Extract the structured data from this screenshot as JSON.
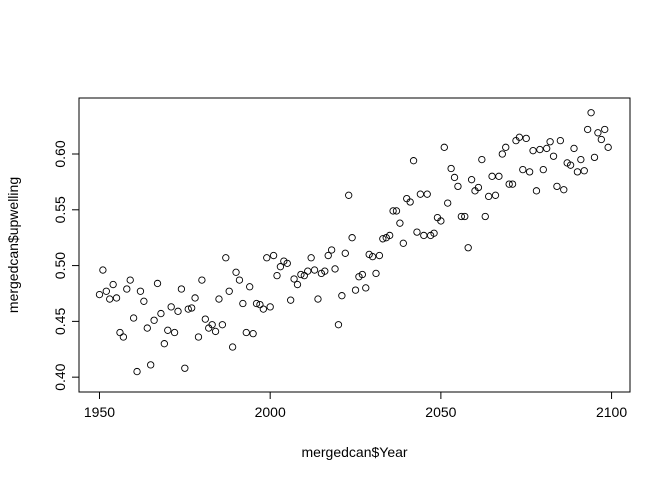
{
  "chart_data": {
    "type": "scatter",
    "xlabel": "mergedcan$Year",
    "ylabel": "mergedcan$upwelling",
    "xlim": [
      1944,
      2105.4
    ],
    "ylim": [
      0.3867,
      0.6502
    ],
    "x_ticks": [
      1950,
      2000,
      2050,
      2100
    ],
    "y_ticks": [
      0.4,
      0.45,
      0.5,
      0.55,
      0.6
    ],
    "x_tick_labels": [
      "1950",
      "2000",
      "2050",
      "2100"
    ],
    "y_tick_labels": [
      "0.40",
      "0.45",
      "0.50",
      "0.55",
      "0.60"
    ],
    "grid": false,
    "legend": "none",
    "marker": "open-circle",
    "color": "#000000",
    "x": [
      1950,
      1951,
      1952,
      1953,
      1954,
      1955,
      1956,
      1957,
      1958,
      1959,
      1960,
      1961,
      1962,
      1963,
      1964,
      1965,
      1966,
      1967,
      1968,
      1969,
      1970,
      1971,
      1972,
      1973,
      1974,
      1975,
      1976,
      1977,
      1978,
      1979,
      1980,
      1981,
      1982,
      1983,
      1984,
      1985,
      1986,
      1987,
      1988,
      1989,
      1990,
      1991,
      1992,
      1993,
      1994,
      1995,
      1996,
      1997,
      1998,
      1999,
      2000,
      2001,
      2002,
      2003,
      2004,
      2005,
      2006,
      2007,
      2008,
      2009,
      2010,
      2011,
      2012,
      2013,
      2014,
      2015,
      2016,
      2017,
      2018,
      2019,
      2020,
      2021,
      2022,
      2023,
      2024,
      2025,
      2026,
      2027,
      2028,
      2029,
      2030,
      2031,
      2032,
      2033,
      2034,
      2035,
      2036,
      2037,
      2038,
      2039,
      2040,
      2041,
      2042,
      2043,
      2044,
      2045,
      2046,
      2047,
      2048,
      2049,
      2050,
      2051,
      2052,
      2053,
      2054,
      2055,
      2056,
      2057,
      2058,
      2059,
      2060,
      2061,
      2062,
      2063,
      2064,
      2065,
      2066,
      2067,
      2068,
      2069,
      2070,
      2071,
      2072,
      2073,
      2074,
      2075,
      2076,
      2077,
      2078,
      2079,
      2080,
      2081,
      2082,
      2083,
      2084,
      2085,
      2086,
      2087,
      2088,
      2089,
      2090,
      2091,
      2092,
      2093,
      2094,
      2095,
      2096,
      2097,
      2098,
      2099
    ],
    "y": [
      0.474,
      0.496,
      0.477,
      0.47,
      0.483,
      0.471,
      0.44,
      0.436,
      0.479,
      0.487,
      0.453,
      0.405,
      0.477,
      0.468,
      0.444,
      0.411,
      0.451,
      0.484,
      0.457,
      0.43,
      0.442,
      0.463,
      0.44,
      0.459,
      0.479,
      0.408,
      0.461,
      0.462,
      0.471,
      0.436,
      0.487,
      0.452,
      0.444,
      0.447,
      0.441,
      0.47,
      0.447,
      0.507,
      0.477,
      0.427,
      0.494,
      0.487,
      0.466,
      0.44,
      0.481,
      0.439,
      0.466,
      0.465,
      0.461,
      0.507,
      0.463,
      0.509,
      0.491,
      0.499,
      0.504,
      0.502,
      0.469,
      0.488,
      0.483,
      0.492,
      0.491,
      0.495,
      0.507,
      0.496,
      0.47,
      0.493,
      0.495,
      0.509,
      0.514,
      0.497,
      0.447,
      0.473,
      0.511,
      0.563,
      0.525,
      0.478,
      0.49,
      0.492,
      0.48,
      0.51,
      0.508,
      0.493,
      0.509,
      0.524,
      0.525,
      0.527,
      0.549,
      0.549,
      0.538,
      0.52,
      0.56,
      0.557,
      0.594,
      0.53,
      0.564,
      0.527,
      0.564,
      0.527,
      0.529,
      0.543,
      0.54,
      0.606,
      0.556,
      0.587,
      0.579,
      0.571,
      0.544,
      0.544,
      0.516,
      0.577,
      0.567,
      0.57,
      0.595,
      0.544,
      0.562,
      0.58,
      0.563,
      0.58,
      0.6,
      0.606,
      0.573,
      0.573,
      0.612,
      0.615,
      0.586,
      0.614,
      0.584,
      0.603,
      0.567,
      0.604,
      0.586,
      0.605,
      0.611,
      0.598,
      0.571,
      0.612,
      0.568,
      0.592,
      0.59,
      0.605,
      0.584,
      0.595,
      0.585,
      0.622,
      0.637,
      0.597,
      0.619,
      0.613,
      0.622,
      0.606
    ]
  }
}
